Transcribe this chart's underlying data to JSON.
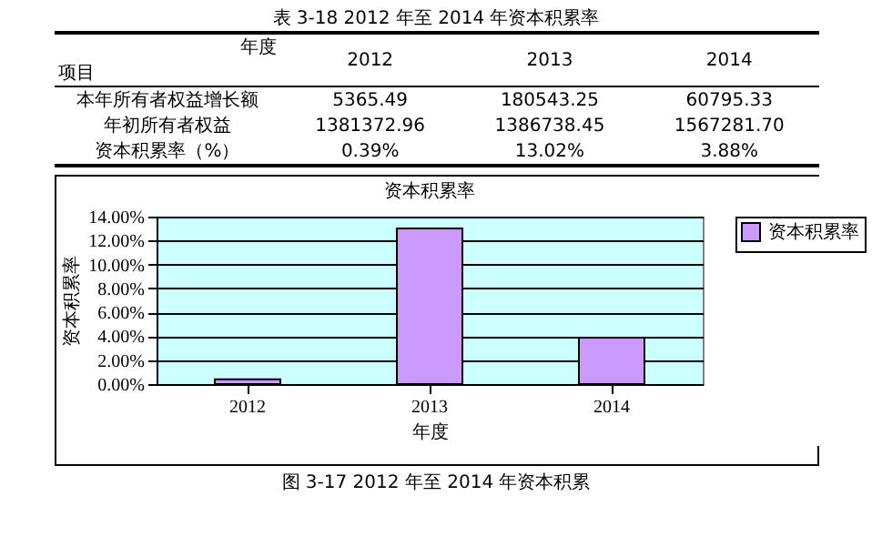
{
  "chart_data": {
    "type": "bar",
    "title": "资本积累率",
    "xlabel": "年度",
    "ylabel": "资本积累率",
    "categories": [
      "2012",
      "2013",
      "2014"
    ],
    "series": [
      {
        "name": "资本积累率",
        "color": "#cc99ff",
        "values": [
          0.39,
          13.02,
          3.88
        ]
      }
    ],
    "ylim": [
      0,
      14
    ],
    "yticks": [
      {
        "value": 0,
        "label": "0.00%"
      },
      {
        "value": 2,
        "label": "2.00%"
      },
      {
        "value": 4,
        "label": "4.00%"
      },
      {
        "value": 6,
        "label": "6.00%"
      },
      {
        "value": 8,
        "label": "8.00%"
      },
      {
        "value": 10,
        "label": "10.00%"
      },
      {
        "value": 12,
        "label": "12.00%"
      },
      {
        "value": 14,
        "label": "14.00%"
      }
    ],
    "grid": "y",
    "legend": "right",
    "annotations": [
      "表 3-18 2012 年至 2014 年资本积累率",
      "年度",
      "项目",
      "2012",
      "2013",
      "2014",
      "本年所有者权益增长额",
      "5365.49",
      "180543.25",
      "60795.33",
      "年初所有者权益",
      "1381372.96",
      "1386738.45",
      "1567281.70",
      "资本积累率（%）",
      "0.39%",
      "13.02%",
      "3.88%",
      "图 3-17 2012 年至 2014 年资本积累"
    ]
  }
}
